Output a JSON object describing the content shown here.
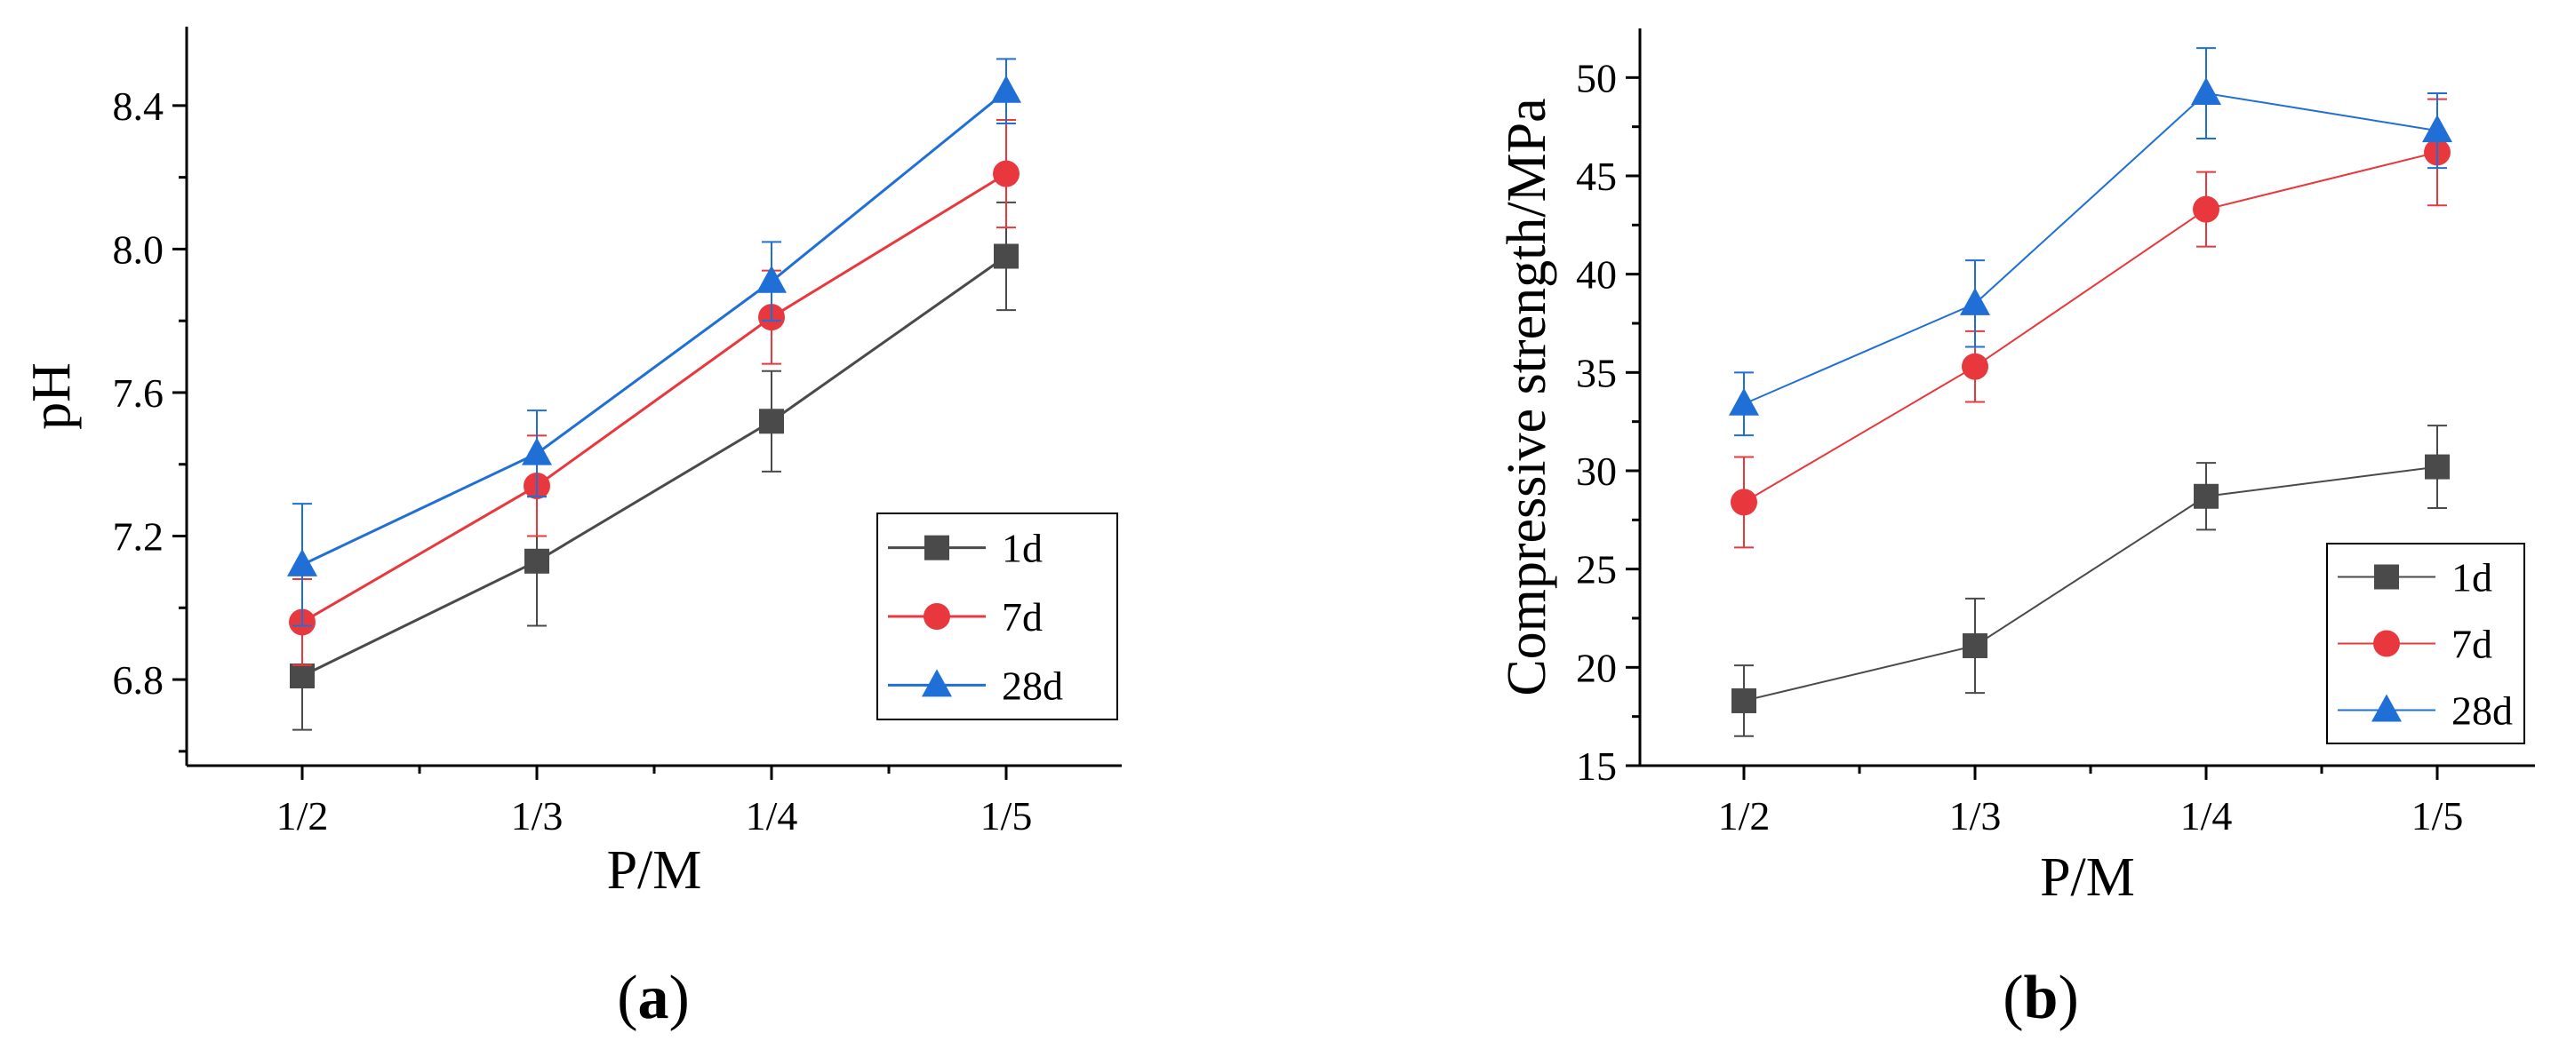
{
  "figure": {
    "panels": [
      {
        "open": "(",
        "letter": "a",
        "close": ")"
      },
      {
        "open": "(",
        "letter": "b",
        "close": ")"
      }
    ]
  },
  "chart_data": [
    {
      "id": "a",
      "type": "line",
      "title": "",
      "xlabel": "P/M",
      "ylabel": "pH",
      "categories": [
        "1/2",
        "1/3",
        "1/4",
        "1/5"
      ],
      "ylim": [
        6.56,
        8.62
      ],
      "yticks": [
        "6.8",
        "7.2",
        "7.6",
        "8.0",
        "8.4"
      ],
      "ytick_values": [
        6.8,
        7.2,
        7.6,
        8.0,
        8.4
      ],
      "legend_position": "lower-right",
      "series": [
        {
          "name": "1d",
          "marker": "square",
          "color": "#4a4a4a",
          "values": [
            6.81,
            7.13,
            7.52,
            7.98
          ],
          "errors": [
            0.15,
            0.18,
            0.14,
            0.15
          ]
        },
        {
          "name": "7d",
          "marker": "circle",
          "color": "#e8383d",
          "values": [
            6.96,
            7.34,
            7.81,
            8.21
          ],
          "errors": [
            0.12,
            0.14,
            0.13,
            0.15
          ]
        },
        {
          "name": "28d",
          "marker": "triangle",
          "color": "#1f6fd6",
          "values": [
            7.12,
            7.43,
            7.91,
            8.44
          ],
          "errors": [
            0.17,
            0.12,
            0.11,
            0.09
          ]
        }
      ]
    },
    {
      "id": "b",
      "type": "line",
      "title": "",
      "xlabel": "P/M",
      "ylabel": "Compressive strength/MPa",
      "categories": [
        "1/2",
        "1/3",
        "1/4",
        "1/5"
      ],
      "ylim": [
        15,
        52.5
      ],
      "yticks": [
        "15",
        "20",
        "25",
        "30",
        "35",
        "40",
        "45",
        "50"
      ],
      "ytick_values": [
        15,
        20,
        25,
        30,
        35,
        40,
        45,
        50
      ],
      "legend_position": "lower-right",
      "series": [
        {
          "name": "1d",
          "marker": "square",
          "color": "#4a4a4a",
          "values": [
            18.3,
            21.1,
            28.7,
            30.2
          ],
          "errors": [
            1.8,
            2.4,
            1.7,
            2.1
          ]
        },
        {
          "name": "7d",
          "marker": "circle",
          "color": "#e8383d",
          "values": [
            28.4,
            35.3,
            43.3,
            46.2
          ],
          "errors": [
            2.3,
            1.8,
            1.9,
            2.7
          ]
        },
        {
          "name": "28d",
          "marker": "triangle",
          "color": "#1f6fd6",
          "values": [
            33.4,
            38.5,
            49.2,
            47.3
          ],
          "errors": [
            1.6,
            2.2,
            2.3,
            1.9
          ]
        }
      ]
    }
  ]
}
